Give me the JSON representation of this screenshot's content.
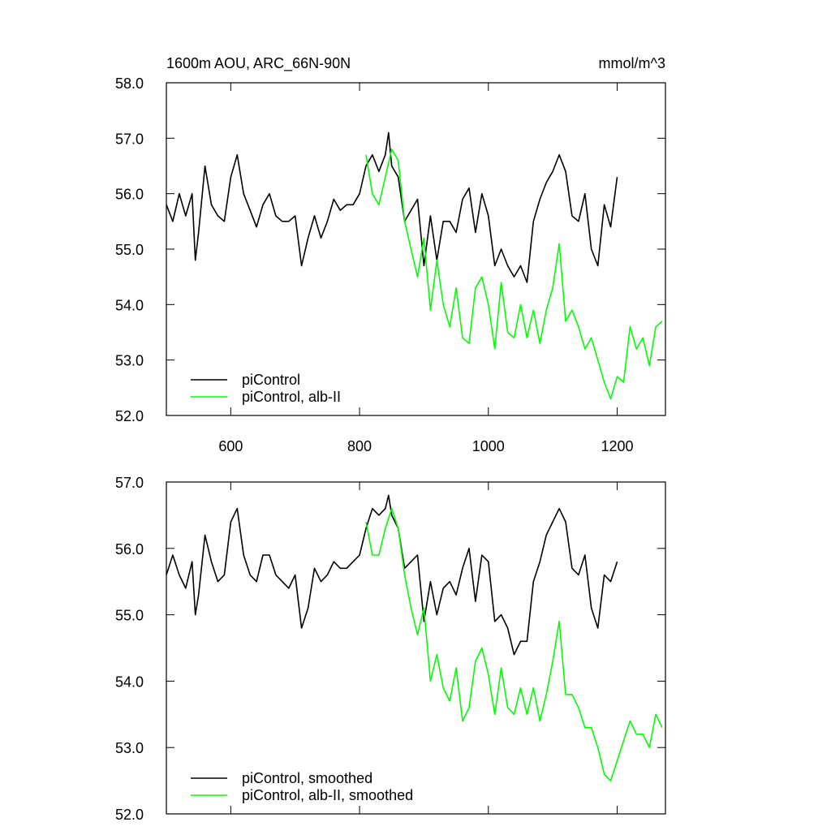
{
  "chart_data": [
    {
      "type": "line",
      "title": "1600m AOU, ARC_66N-90N",
      "units": "mmol/m^3",
      "xlim": [
        500,
        1275
      ],
      "ylim": [
        52,
        58
      ],
      "xticks": [
        600,
        800,
        1000,
        1200
      ],
      "show_xtick_labels": true,
      "yticks": [
        {
          "value": 52,
          "label": "52.0"
        },
        {
          "value": 53,
          "label": "53.0"
        },
        {
          "value": 54,
          "label": "54.0"
        },
        {
          "value": 55,
          "label": "55.0"
        },
        {
          "value": 56,
          "label": "56.0"
        },
        {
          "value": 57,
          "label": "57.0"
        },
        {
          "value": 58,
          "label": "58.0"
        }
      ],
      "legend": "lower left",
      "series": [
        {
          "name": "piControl",
          "color": "#000000",
          "x": [
            500,
            510,
            520,
            530,
            540,
            545,
            550,
            560,
            570,
            580,
            590,
            600,
            610,
            620,
            630,
            640,
            650,
            660,
            670,
            680,
            690,
            700,
            710,
            720,
            730,
            740,
            750,
            760,
            770,
            780,
            790,
            800,
            810,
            820,
            830,
            840,
            845,
            850,
            860,
            870,
            880,
            890,
            900,
            910,
            920,
            930,
            940,
            950,
            960,
            970,
            980,
            990,
            1000,
            1010,
            1020,
            1030,
            1040,
            1050,
            1060,
            1070,
            1080,
            1090,
            1100,
            1110,
            1120,
            1130,
            1140,
            1150,
            1160,
            1170,
            1180,
            1190,
            1200
          ],
          "values": [
            55.8,
            55.5,
            56.0,
            55.6,
            56.0,
            54.8,
            55.3,
            56.5,
            55.8,
            55.6,
            55.5,
            56.3,
            56.7,
            56.0,
            55.7,
            55.4,
            55.8,
            56.0,
            55.6,
            55.5,
            55.5,
            55.6,
            54.7,
            55.2,
            55.6,
            55.2,
            55.5,
            55.9,
            55.7,
            55.8,
            55.8,
            56.0,
            56.5,
            56.7,
            56.4,
            56.7,
            57.1,
            56.5,
            56.3,
            55.5,
            55.7,
            55.9,
            54.7,
            55.6,
            54.8,
            55.5,
            55.5,
            55.3,
            55.9,
            56.1,
            55.3,
            56.0,
            55.6,
            54.7,
            55.0,
            54.7,
            54.5,
            54.7,
            54.4,
            55.5,
            55.9,
            56.2,
            56.4,
            56.7,
            56.4,
            55.6,
            55.5,
            56.0,
            55.0,
            54.7,
            55.8,
            55.4,
            56.3
          ]
        },
        {
          "name": "piControl, alb-II",
          "color": "#00ff00",
          "x": [
            810,
            820,
            830,
            840,
            850,
            860,
            870,
            880,
            890,
            900,
            910,
            920,
            930,
            940,
            950,
            960,
            970,
            980,
            990,
            1000,
            1010,
            1020,
            1030,
            1040,
            1050,
            1060,
            1070,
            1080,
            1090,
            1100,
            1110,
            1120,
            1130,
            1140,
            1150,
            1160,
            1170,
            1180,
            1190,
            1200,
            1210,
            1220,
            1230,
            1240,
            1250,
            1260,
            1270
          ],
          "values": [
            56.7,
            56.0,
            55.8,
            56.3,
            56.8,
            56.6,
            55.5,
            55.0,
            54.5,
            55.2,
            53.9,
            54.8,
            54.0,
            53.6,
            54.3,
            53.4,
            53.3,
            54.3,
            54.5,
            54.0,
            53.2,
            54.4,
            53.5,
            53.4,
            54.0,
            53.4,
            53.9,
            53.3,
            53.9,
            54.3,
            55.1,
            53.7,
            53.9,
            53.6,
            53.2,
            53.4,
            53.0,
            52.6,
            52.3,
            52.7,
            52.6,
            53.6,
            53.2,
            53.4,
            52.9,
            53.6,
            53.7
          ]
        }
      ]
    },
    {
      "type": "line",
      "xlim": [
        500,
        1275
      ],
      "ylim": [
        52,
        57
      ],
      "xticks": [
        600,
        800,
        1000,
        1200
      ],
      "show_xtick_labels": false,
      "yticks": [
        {
          "value": 52,
          "label": "52.0"
        },
        {
          "value": 53,
          "label": "53.0"
        },
        {
          "value": 54,
          "label": "54.0"
        },
        {
          "value": 55,
          "label": "55.0"
        },
        {
          "value": 56,
          "label": "56.0"
        },
        {
          "value": 57,
          "label": "57.0"
        }
      ],
      "legend": "lower left",
      "series": [
        {
          "name": "piControl, smoothed",
          "color": "#000000",
          "x": [
            500,
            510,
            520,
            530,
            540,
            545,
            550,
            560,
            570,
            580,
            590,
            600,
            610,
            620,
            630,
            640,
            650,
            660,
            670,
            680,
            690,
            700,
            710,
            720,
            730,
            740,
            750,
            760,
            770,
            780,
            790,
            800,
            810,
            820,
            830,
            840,
            845,
            850,
            860,
            870,
            880,
            890,
            900,
            910,
            920,
            930,
            940,
            950,
            960,
            970,
            980,
            990,
            1000,
            1010,
            1020,
            1030,
            1040,
            1050,
            1060,
            1070,
            1080,
            1090,
            1100,
            1110,
            1120,
            1130,
            1140,
            1150,
            1160,
            1170,
            1180,
            1190,
            1200
          ],
          "values": [
            55.6,
            55.9,
            55.6,
            55.4,
            55.8,
            55.0,
            55.3,
            56.2,
            55.8,
            55.5,
            55.6,
            56.4,
            56.6,
            55.9,
            55.6,
            55.5,
            55.9,
            55.9,
            55.6,
            55.5,
            55.4,
            55.6,
            54.8,
            55.1,
            55.7,
            55.5,
            55.6,
            55.8,
            55.7,
            55.7,
            55.8,
            55.9,
            56.3,
            56.6,
            56.5,
            56.6,
            56.8,
            56.5,
            56.3,
            55.7,
            55.8,
            55.9,
            54.9,
            55.5,
            55.0,
            55.4,
            55.5,
            55.3,
            55.7,
            56.0,
            55.2,
            55.9,
            55.8,
            54.9,
            55.0,
            54.8,
            54.4,
            54.6,
            54.6,
            55.5,
            55.8,
            56.2,
            56.4,
            56.6,
            56.4,
            55.7,
            55.6,
            55.9,
            55.1,
            54.8,
            55.6,
            55.5,
            55.8
          ]
        },
        {
          "name": "piControl, alb-II, smoothed",
          "color": "#00ff00",
          "x": [
            810,
            820,
            830,
            840,
            850,
            860,
            870,
            880,
            890,
            900,
            910,
            920,
            930,
            940,
            950,
            960,
            970,
            980,
            990,
            1000,
            1010,
            1020,
            1030,
            1040,
            1050,
            1060,
            1070,
            1080,
            1090,
            1100,
            1110,
            1120,
            1130,
            1140,
            1150,
            1160,
            1170,
            1180,
            1190,
            1200,
            1210,
            1220,
            1230,
            1240,
            1250,
            1260,
            1270
          ],
          "values": [
            56.4,
            55.9,
            55.9,
            56.3,
            56.6,
            56.3,
            55.6,
            55.1,
            54.7,
            55.1,
            54.0,
            54.4,
            53.9,
            53.7,
            54.2,
            53.4,
            53.6,
            54.3,
            54.5,
            54.1,
            53.5,
            54.2,
            53.6,
            53.5,
            53.9,
            53.5,
            53.9,
            53.4,
            53.8,
            54.3,
            54.9,
            53.8,
            53.8,
            53.6,
            53.3,
            53.3,
            53.0,
            52.6,
            52.5,
            52.8,
            53.1,
            53.4,
            53.2,
            53.2,
            53.0,
            53.5,
            53.3
          ]
        }
      ]
    }
  ]
}
